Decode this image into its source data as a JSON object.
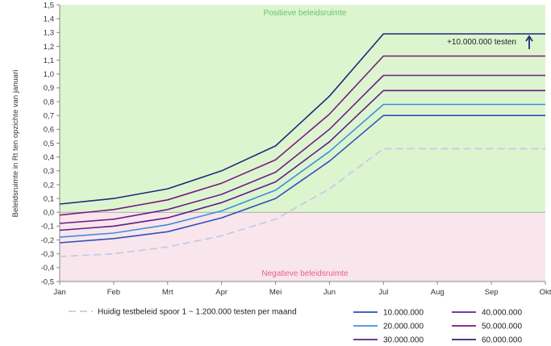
{
  "chart_data": {
    "type": "line",
    "ylabel": "Beleidsruimte in Rt ten opzichte van januari",
    "ylim": [
      -0.5,
      1.5
    ],
    "ytick_step": 0.1,
    "categories": [
      "Jan",
      "Feb",
      "Mrt",
      "Apr",
      "Mei",
      "Jun",
      "Jul",
      "Aug",
      "Sep",
      "Okt"
    ],
    "regions": {
      "positive": {
        "label": "Positieve beleidsruimte",
        "color": "#dcf5cf"
      },
      "negative": {
        "label": "Negatieve beleidsruimte",
        "color": "#f9e6ec"
      }
    },
    "annotation": {
      "text": "+10.000.000 testen",
      "arrow_from": 1.18,
      "arrow_to": 1.29,
      "arrow_category": "Okt"
    },
    "grid": false,
    "series": [
      {
        "name": "Huidig testbeleid spoor 1 ~ 1.200.000 testen per maand",
        "color": "#c3cce6",
        "dashed": true,
        "values": [
          -0.32,
          -0.3,
          -0.25,
          -0.17,
          -0.05,
          0.17,
          0.46,
          0.46,
          0.46,
          0.46
        ]
      },
      {
        "name": "10.000.000",
        "color": "#2f4fb8",
        "values": [
          -0.22,
          -0.19,
          -0.14,
          -0.04,
          0.1,
          0.37,
          0.7,
          0.7,
          0.7,
          0.7
        ]
      },
      {
        "name": "20.000.000",
        "color": "#3d8fd9",
        "values": [
          -0.18,
          -0.15,
          -0.09,
          0.01,
          0.16,
          0.44,
          0.78,
          0.78,
          0.78,
          0.78
        ]
      },
      {
        "name": "30.000.000",
        "color": "#5a1e8c",
        "values": [
          -0.13,
          -0.1,
          -0.04,
          0.07,
          0.22,
          0.51,
          0.88,
          0.88,
          0.88,
          0.88
        ]
      },
      {
        "name": "40.000.000",
        "color": "#6b1f8f",
        "values": [
          -0.08,
          -0.05,
          0.02,
          0.13,
          0.29,
          0.6,
          0.99,
          0.99,
          0.99,
          0.99
        ]
      },
      {
        "name": "50.000.000",
        "color": "#7a1a7e",
        "values": [
          -0.02,
          0.02,
          0.09,
          0.21,
          0.38,
          0.71,
          1.13,
          1.13,
          1.13,
          1.13
        ]
      },
      {
        "name": "60.000.000",
        "color": "#1f2a7a",
        "values": [
          0.06,
          0.1,
          0.17,
          0.3,
          0.48,
          0.84,
          1.29,
          1.29,
          1.29,
          1.29
        ]
      }
    ]
  }
}
